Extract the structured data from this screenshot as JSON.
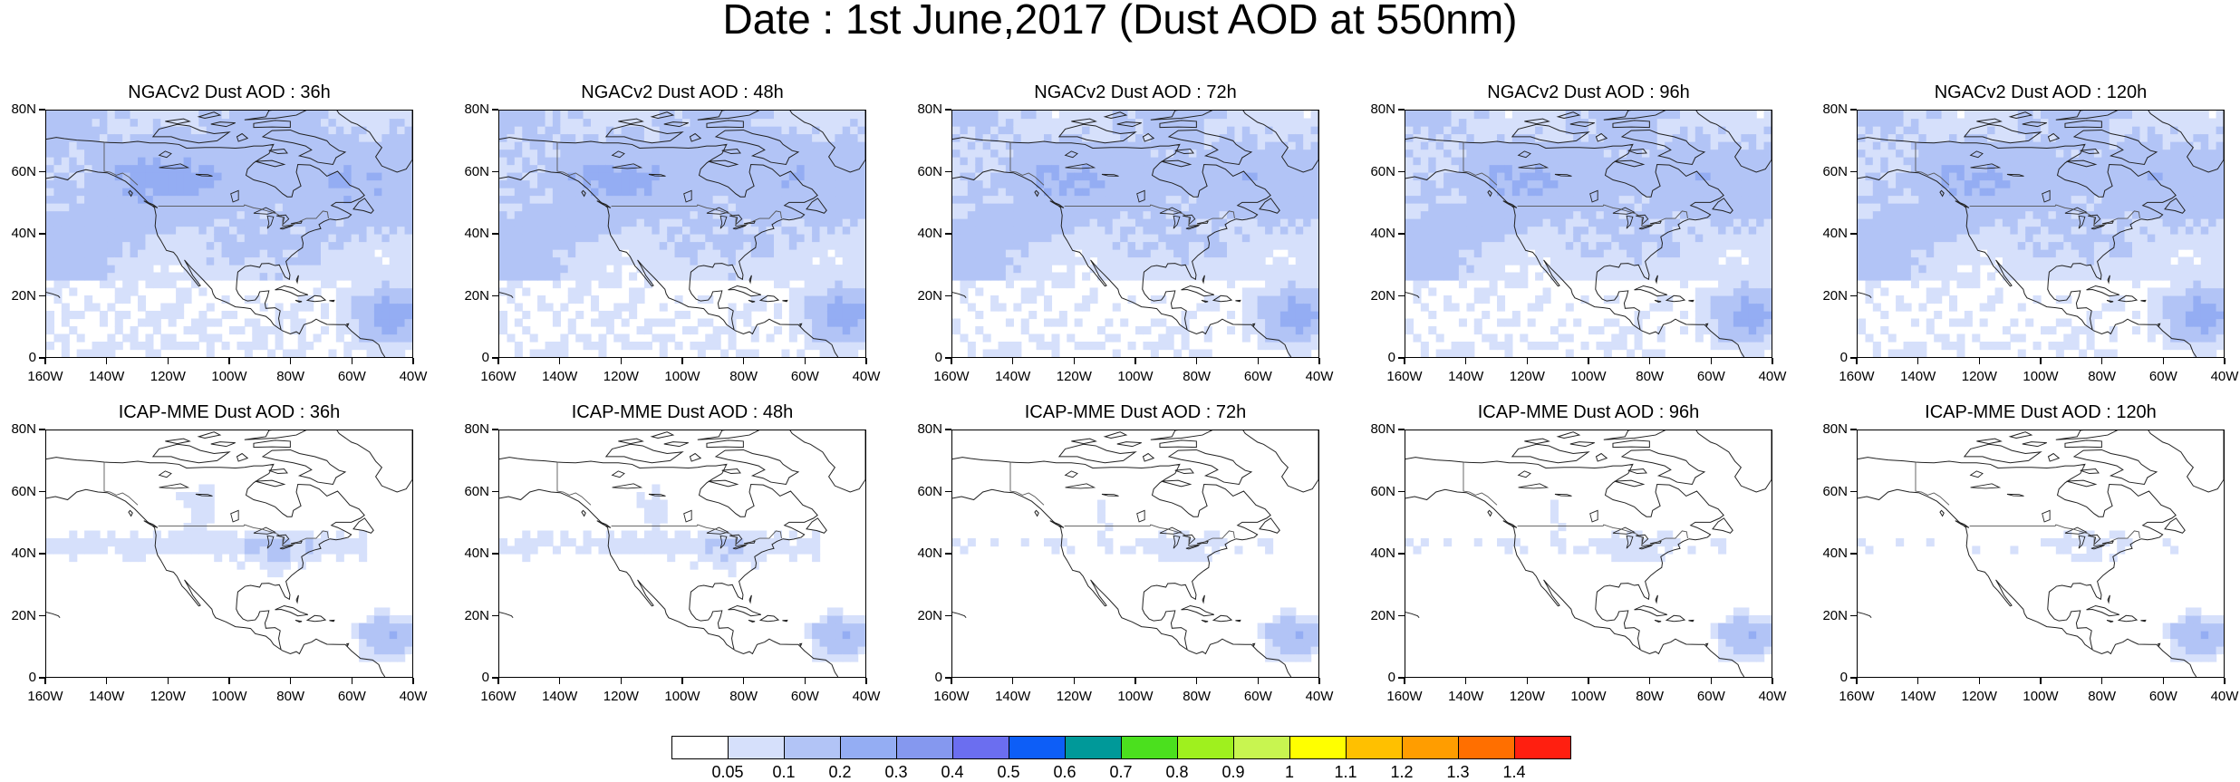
{
  "title": "Date : 1st June,2017 (Dust AOD at 550nm)",
  "panels": [
    {
      "title": "NGACv2 Dust AOD : 36h",
      "row": 0,
      "col": 0,
      "intensity": 0.95
    },
    {
      "title": "NGACv2 Dust AOD : 48h",
      "row": 0,
      "col": 1,
      "intensity": 0.9
    },
    {
      "title": "NGACv2 Dust AOD : 72h",
      "row": 0,
      "col": 2,
      "intensity": 0.85
    },
    {
      "title": "NGACv2 Dust AOD : 96h",
      "row": 0,
      "col": 3,
      "intensity": 0.85
    },
    {
      "title": "NGACv2 Dust AOD : 120h",
      "row": 0,
      "col": 4,
      "intensity": 0.85
    },
    {
      "title": "ICAP-MME Dust AOD : 36h",
      "row": 1,
      "col": 0,
      "intensity": 0.55
    },
    {
      "title": "ICAP-MME Dust AOD : 48h",
      "row": 1,
      "col": 1,
      "intensity": 0.5
    },
    {
      "title": "ICAP-MME Dust AOD : 72h",
      "row": 1,
      "col": 2,
      "intensity": 0.35
    },
    {
      "title": "ICAP-MME Dust AOD : 96h",
      "row": 1,
      "col": 3,
      "intensity": 0.35
    },
    {
      "title": "ICAP-MME Dust AOD : 120h",
      "row": 1,
      "col": 4,
      "intensity": 0.3
    }
  ],
  "lat_labels": [
    "80N",
    "60N",
    "40N",
    "20N",
    "0"
  ],
  "lon_labels": [
    "160W",
    "140W",
    "120W",
    "100W",
    "80W",
    "60W",
    "40W"
  ],
  "colorbar": {
    "labels": [
      "0.05",
      "0.1",
      "0.2",
      "0.3",
      "0.4",
      "0.5",
      "0.6",
      "0.7",
      "0.8",
      "0.9",
      "1",
      "1.1",
      "1.2",
      "1.3",
      "1.4"
    ],
    "colors": [
      "#ffffff",
      "#d6e0fb",
      "#b2c4f6",
      "#94adf3",
      "#8598ef",
      "#6b6ef0",
      "#0d5ef7",
      "#009999",
      "#4be01e",
      "#9ff01e",
      "#c8f550",
      "#ffff00",
      "#ffc000",
      "#ff9d00",
      "#ff6f00",
      "#ff1f10"
    ]
  }
}
